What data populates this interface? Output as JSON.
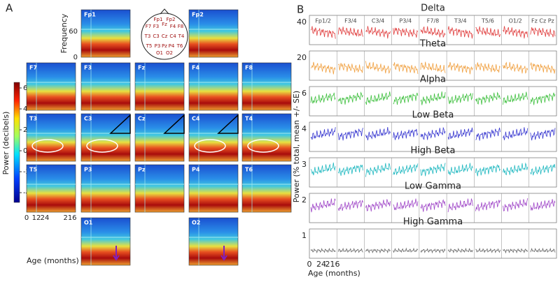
{
  "panel_a": {
    "label": "A",
    "y_axis_label": "Frequency",
    "y_ticks": [
      "60",
      "0"
    ],
    "x_ticks": [
      "0",
      "12",
      "24",
      "216"
    ],
    "x_axis_label": "Age (months)",
    "colorbar": {
      "label": "Power (decibels)",
      "ticks": [
        "6",
        "4",
        "2",
        "0",
        "-2",
        "-4"
      ]
    },
    "tiles": [
      "Fp1",
      "Fp2",
      "F7",
      "F3",
      "Fz",
      "F4",
      "F8",
      "T3",
      "C3",
      "Cz",
      "C4",
      "T4",
      "T5",
      "P3",
      "Pz",
      "P4",
      "T6",
      "O1",
      "O2"
    ],
    "head_labels": [
      "Fp1",
      "Fp2",
      "F7",
      "F3",
      "Fz",
      "F4",
      "F8",
      "T3",
      "C3",
      "Cz",
      "C4",
      "T4",
      "T5",
      "P3",
      "Pz",
      "P4",
      "T6",
      "O1",
      "O2"
    ]
  },
  "panel_b": {
    "label": "B",
    "columns": [
      "Fp1/2",
      "F3/4",
      "C3/4",
      "P3/4",
      "F7/8",
      "T3/4",
      "T5/6",
      "O1/2",
      "Fz Cz Pz"
    ],
    "rows": [
      {
        "title": "Delta",
        "y_tick": "40"
      },
      {
        "title": "Theta",
        "y_tick": "20"
      },
      {
        "title": "Alpha",
        "y_tick": "6"
      },
      {
        "title": "Low Beta",
        "y_tick": "4"
      },
      {
        "title": "High Beta",
        "y_tick": "3"
      },
      {
        "title": "Low Gamma",
        "y_tick": "2"
      },
      {
        "title": "High Gamma",
        "y_tick": "1"
      }
    ],
    "y_axis_label": "Power (% total, mean +/- SE)",
    "x_ticks": [
      "0",
      "24",
      "216"
    ],
    "x_axis_label": "Age (months)"
  }
}
